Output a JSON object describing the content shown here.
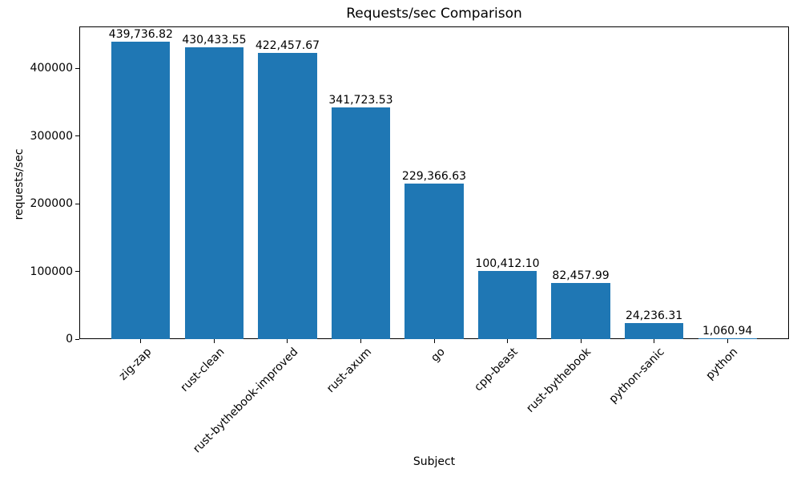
{
  "chart_data": {
    "type": "bar",
    "title": "Requests/sec Comparison",
    "xlabel": "Subject",
    "ylabel": "requests/sec",
    "categories": [
      "zig-zap",
      "rust-clean",
      "rust-bythebook-improved",
      "rust-axum",
      "go",
      "cpp-beast",
      "rust-bythebook",
      "python-sanic",
      "python"
    ],
    "values": [
      439736.82,
      430433.55,
      422457.67,
      341723.53,
      229366.63,
      100412.1,
      82457.99,
      24236.31,
      1060.94
    ],
    "value_labels": [
      "439,736.82",
      "430,433.55",
      "422,457.67",
      "341,723.53",
      "229,366.63",
      "100,412.10",
      "82,457.99",
      "24,236.31",
      "1,060.94"
    ],
    "yticks": [
      0,
      100000,
      200000,
      300000,
      400000
    ],
    "ytick_labels": [
      "0",
      "100000",
      "200000",
      "300000",
      "400000"
    ],
    "ylim": [
      0,
      461723.66
    ],
    "xtick_rotation": 45,
    "grid": false,
    "legend": null,
    "bar_color": "#1f77b4",
    "spine_color": "#000000",
    "text_color": "#000000",
    "background": "#ffffff"
  }
}
